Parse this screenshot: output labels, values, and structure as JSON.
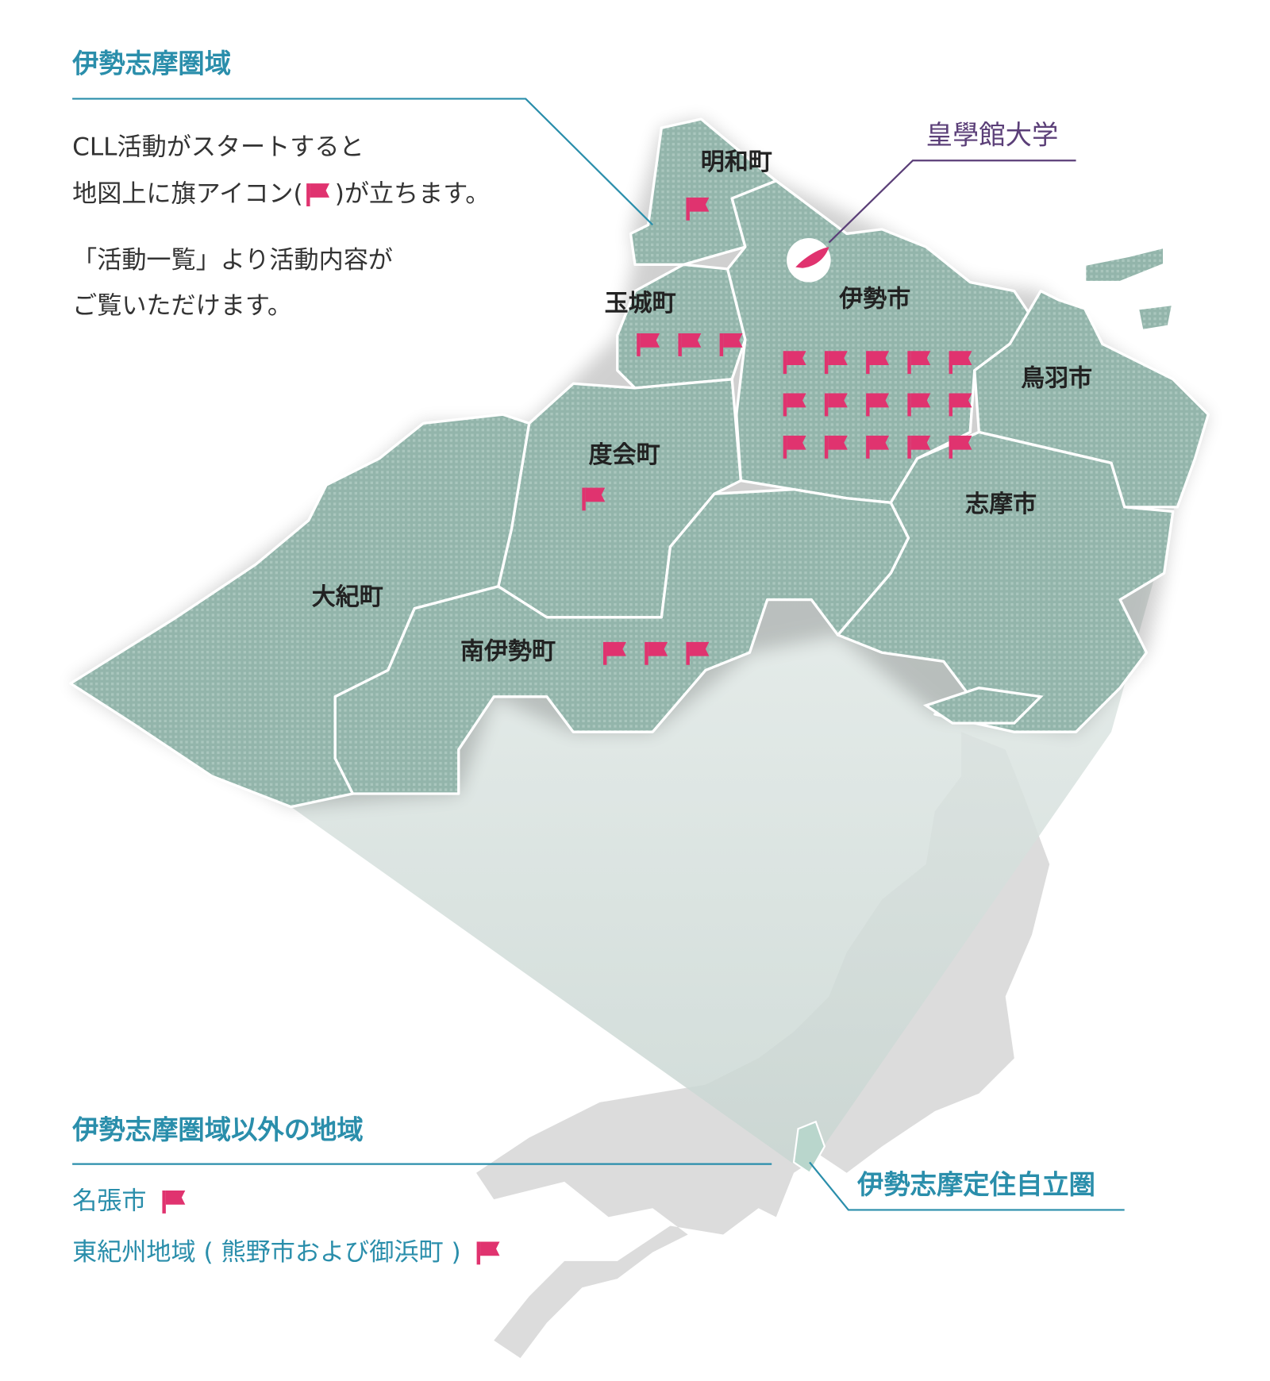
{
  "header": {
    "title": "伊勢志摩圏域",
    "description": [
      "CLL活動がスタートすると",
      "地図上に旗アイコン(",
      ")が立ちます。",
      "「活動一覧」より活動内容が",
      "ご覧いただけます。"
    ]
  },
  "university": "皇學館大学",
  "municipalities": [
    {
      "name": "明和町",
      "flags": 1
    },
    {
      "name": "玉城町",
      "flags": 3
    },
    {
      "name": "伊勢市",
      "flags": 15
    },
    {
      "name": "鳥羽市",
      "flags": 0
    },
    {
      "name": "度会町",
      "flags": 1
    },
    {
      "name": "志摩市",
      "flags": 0
    },
    {
      "name": "大紀町",
      "flags": 0
    },
    {
      "name": "南伊勢町",
      "flags": 3
    }
  ],
  "outside": {
    "title": "伊勢志摩圏域以外の地域",
    "areas": [
      {
        "name": "名張市",
        "flags": 1
      },
      {
        "name": "東紀州地域 ( 熊野市および御浜町 )",
        "flags": 1
      }
    ]
  },
  "region_label": "伊勢志摩定住自立圏"
}
